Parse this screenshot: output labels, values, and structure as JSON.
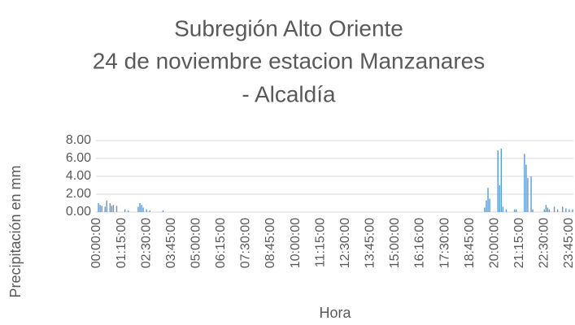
{
  "chart_data": {
    "type": "bar",
    "title": [
      "Subregión Alto Oriente",
      "24 de noviembre estacion Manzanares",
      "- Alcaldía"
    ],
    "x_label": "Hora",
    "y_label": "Precipitación en mm",
    "color": "#5b9bd5",
    "grid": true,
    "ylim": [
      0,
      8
    ],
    "yticks": [
      {
        "value": 0,
        "label": "0.00"
      },
      {
        "value": 2,
        "label": "2.00"
      },
      {
        "value": 4,
        "label": "4.00"
      },
      {
        "value": 6,
        "label": "6.00"
      },
      {
        "value": 8,
        "label": "8.00"
      }
    ],
    "categories": [
      "00:00:00",
      null,
      null,
      null,
      null,
      null,
      null,
      null,
      null,
      null,
      null,
      null,
      null,
      null,
      null,
      "01:15:00",
      null,
      null,
      null,
      null,
      null,
      null,
      null,
      null,
      null,
      null,
      null,
      null,
      null,
      null,
      "02:30:00",
      null,
      null,
      null,
      null,
      null,
      null,
      null,
      null,
      null,
      null,
      null,
      null,
      null,
      null,
      "03:45:00",
      null,
      null,
      null,
      null,
      null,
      null,
      null,
      null,
      null,
      null,
      null,
      null,
      null,
      null,
      "05:00:00",
      null,
      null,
      null,
      null,
      null,
      null,
      null,
      null,
      null,
      null,
      null,
      null,
      null,
      null,
      "06:15:00",
      null,
      null,
      null,
      null,
      null,
      null,
      null,
      null,
      null,
      null,
      null,
      null,
      null,
      null,
      "07:30:00",
      null,
      null,
      null,
      null,
      null,
      null,
      null,
      null,
      null,
      null,
      null,
      null,
      null,
      null,
      "08:45:00",
      null,
      null,
      null,
      null,
      null,
      null,
      null,
      null,
      null,
      null,
      null,
      null,
      null,
      null,
      "10:00:00",
      null,
      null,
      null,
      null,
      null,
      null,
      null,
      null,
      null,
      null,
      null,
      null,
      null,
      null,
      "11:15:00",
      null,
      null,
      null,
      null,
      null,
      null,
      null,
      null,
      null,
      null,
      null,
      null,
      null,
      null,
      "12:30:00",
      null,
      null,
      null,
      null,
      null,
      null,
      null,
      null,
      null,
      null,
      null,
      null,
      null,
      null,
      "13:45:00",
      null,
      null,
      null,
      null,
      null,
      null,
      null,
      null,
      null,
      null,
      null,
      null,
      null,
      null,
      "15:00:00",
      null,
      null,
      null,
      null,
      null,
      null,
      null,
      null,
      null,
      null,
      null,
      null,
      null,
      null,
      "16:16:00",
      null,
      null,
      null,
      null,
      null,
      null,
      null,
      null,
      null,
      null,
      null,
      null,
      null,
      null,
      "17:30:00",
      null,
      null,
      null,
      null,
      null,
      null,
      null,
      null,
      null,
      null,
      null,
      null,
      null,
      null,
      "18:45:00",
      null,
      null,
      null,
      null,
      null,
      null,
      null,
      null,
      null,
      null,
      null,
      null,
      null,
      null,
      "20:00:00",
      null,
      null,
      null,
      null,
      null,
      null,
      null,
      null,
      null,
      null,
      null,
      null,
      null,
      null,
      "21:15:00",
      null,
      null,
      null,
      null,
      null,
      null,
      null,
      null,
      null,
      null,
      null,
      null,
      null,
      null,
      "22:30:00",
      null,
      null,
      null,
      null,
      null,
      null,
      null,
      null,
      null,
      null,
      null,
      null,
      null,
      null,
      "23:45:00",
      null,
      null
    ],
    "values": [
      0,
      1.0,
      0.8,
      0.7,
      0,
      0.6,
      1.3,
      0,
      1.0,
      0.7,
      0.8,
      0,
      0.7,
      0,
      0,
      0,
      0,
      0.3,
      0,
      0.2,
      0,
      0,
      0,
      0,
      0,
      0.6,
      1.0,
      0.8,
      0.5,
      0,
      0.3,
      0,
      0.2,
      0,
      0,
      0,
      0,
      0,
      0,
      0,
      0.2,
      0,
      0,
      0,
      0,
      0,
      0,
      0,
      0,
      0,
      0,
      0,
      0,
      0,
      0,
      0,
      0,
      0,
      0,
      0,
      0,
      0,
      0,
      0,
      0,
      0,
      0,
      0,
      0,
      0,
      0,
      0,
      0,
      0,
      0,
      0,
      0,
      0,
      0,
      0,
      0,
      0,
      0,
      0,
      0,
      0,
      0,
      0,
      0,
      0,
      0,
      0,
      0,
      0,
      0,
      0,
      0,
      0,
      0,
      0,
      0,
      0,
      0,
      0,
      0,
      0,
      0,
      0,
      0,
      0,
      0,
      0,
      0,
      0,
      0,
      0,
      0,
      0,
      0,
      0,
      0,
      0,
      0,
      0,
      0,
      0,
      0,
      0,
      0,
      0,
      0,
      0,
      0,
      0,
      0,
      0,
      0,
      0,
      0,
      0,
      0,
      0,
      0,
      0,
      0,
      0,
      0,
      0,
      0,
      0,
      0,
      0,
      0,
      0,
      0,
      0,
      0,
      0,
      0,
      0,
      0,
      0,
      0,
      0,
      0,
      0,
      0,
      0,
      0,
      0,
      0,
      0,
      0,
      0,
      0,
      0,
      0,
      0,
      0,
      0,
      0,
      0,
      0,
      0,
      0,
      0,
      0,
      0,
      0,
      0,
      0,
      0,
      0,
      0,
      0,
      0,
      0,
      0,
      0,
      0,
      0,
      0,
      0,
      0,
      0,
      0,
      0,
      0,
      0,
      0,
      0,
      0,
      0,
      0,
      0,
      0,
      0,
      0,
      0,
      0,
      0,
      0,
      0,
      0,
      0,
      0,
      0,
      0,
      0,
      0,
      0,
      0,
      0,
      0,
      0.5,
      1.3,
      2.7,
      1.5,
      0,
      0,
      0,
      0,
      6.9,
      3.0,
      7.1,
      0.6,
      0,
      0.3,
      0,
      0,
      0,
      0,
      0.3,
      0.3,
      0,
      0,
      0,
      0,
      6.5,
      5.3,
      3.8,
      0,
      4.0,
      0.3,
      0,
      0,
      0,
      0,
      0,
      0,
      0.3,
      0.8,
      0.5,
      0.3,
      0,
      0,
      0.6,
      0,
      0.3,
      0,
      0,
      0.6,
      0,
      0.4,
      0,
      0.3,
      0,
      0.3
    ]
  }
}
